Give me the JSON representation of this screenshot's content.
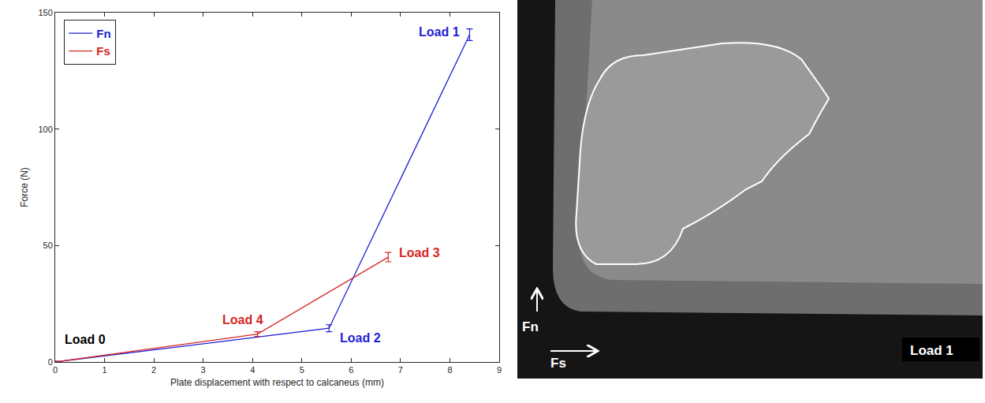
{
  "chart_data": {
    "type": "line",
    "x_label": "Plate displacement with respect to calcaneus (mm)",
    "y_label": "Force (N)",
    "xlim": [
      0,
      9
    ],
    "xticks": [
      0,
      1,
      2,
      3,
      4,
      5,
      6,
      7,
      8,
      9
    ],
    "ylim": [
      0,
      150
    ],
    "yticks": [
      0,
      50,
      100,
      150
    ],
    "grid": false,
    "legend": "upper left",
    "series": [
      {
        "name": "Fn",
        "color": "#1f1fd6",
        "marker": "none",
        "line_style": "solid",
        "x": [
          0,
          5.55,
          8.4
        ],
        "values": [
          0,
          14.5,
          140.5
        ],
        "error": [
          0.3,
          1.5,
          2.5
        ]
      },
      {
        "name": "Fs",
        "color": "#d62626",
        "marker": "none",
        "line_style": "solid",
        "x": [
          0,
          4.1,
          6.75
        ],
        "values": [
          0,
          12,
          45
        ],
        "error": [
          0.3,
          1,
          2
        ]
      }
    ],
    "annotations": [
      {
        "text": "Load 0",
        "x": 0,
        "y": 0,
        "color": "#000000"
      },
      {
        "text": "Load 4",
        "x": 4.1,
        "y": 12,
        "color": "#d62626"
      },
      {
        "text": "Load 3",
        "x": 6.75,
        "y": 45,
        "color": "#d62626"
      },
      {
        "text": "Load 2",
        "x": 5.55,
        "y": 14.5,
        "color": "#1f1fd6"
      },
      {
        "text": "Load 1",
        "x": 8.4,
        "y": 140.5,
        "color": "#1f1fd6"
      }
    ]
  },
  "image_panel": {
    "force_labels": [
      "Fn",
      "Fs"
    ],
    "caption": "Load 1"
  }
}
